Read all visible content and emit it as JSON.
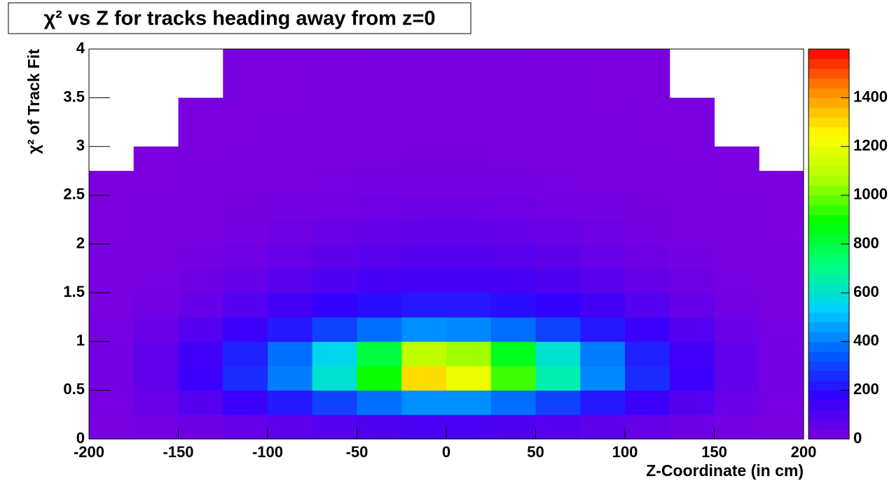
{
  "chart_data": {
    "type": "heatmap",
    "title": "χ² vs Z for tracks heading away from z=0",
    "x_label": "Z-Coordinate (in cm)",
    "y_label": "χ² of Track Fit",
    "x_bins": [
      -200,
      -175,
      -150,
      -125,
      -100,
      -75,
      -50,
      -25,
      0,
      25,
      50,
      75,
      100,
      125,
      150,
      175,
      200
    ],
    "y_bins": [
      0,
      0.25,
      0.5,
      0.75,
      1,
      1.25,
      1.5,
      1.75,
      2,
      2.25,
      2.5,
      2.75,
      3,
      3.25,
      3.5,
      3.75,
      4
    ],
    "z": [
      [
        5,
        15,
        30,
        50,
        70,
        90,
        100,
        110,
        110,
        100,
        90,
        70,
        50,
        30,
        15,
        5
      ],
      [
        10,
        40,
        90,
        150,
        220,
        300,
        380,
        430,
        430,
        380,
        300,
        220,
        150,
        90,
        40,
        10
      ],
      [
        15,
        60,
        150,
        260,
        400,
        600,
        900,
        1300,
        1200,
        950,
        650,
        420,
        260,
        150,
        60,
        15
      ],
      [
        15,
        60,
        140,
        240,
        380,
        560,
        800,
        1100,
        1050,
        850,
        600,
        400,
        240,
        140,
        60,
        15
      ],
      [
        10,
        40,
        90,
        150,
        220,
        300,
        380,
        430,
        420,
        380,
        300,
        220,
        150,
        90,
        40,
        10
      ],
      [
        5,
        20,
        50,
        90,
        130,
        170,
        200,
        220,
        220,
        200,
        170,
        130,
        90,
        50,
        20,
        5
      ],
      [
        3,
        10,
        25,
        50,
        80,
        100,
        120,
        130,
        130,
        120,
        100,
        80,
        50,
        25,
        10,
        3
      ],
      [
        2,
        6,
        12,
        25,
        45,
        65,
        80,
        85,
        85,
        80,
        65,
        45,
        25,
        12,
        6,
        2
      ],
      [
        1,
        3,
        6,
        12,
        25,
        40,
        50,
        55,
        55,
        50,
        40,
        25,
        12,
        6,
        3,
        1
      ],
      [
        1,
        2,
        4,
        8,
        12,
        20,
        25,
        28,
        28,
        25,
        20,
        12,
        8,
        4,
        2,
        1
      ],
      [
        1,
        1,
        2,
        4,
        6,
        9,
        12,
        13,
        13,
        12,
        9,
        6,
        4,
        2,
        1,
        1
      ],
      [
        0,
        1,
        1,
        2,
        3,
        5,
        6,
        7,
        7,
        6,
        5,
        3,
        2,
        1,
        1,
        0
      ],
      [
        0,
        0,
        1,
        1,
        2,
        3,
        4,
        4,
        4,
        4,
        3,
        2,
        1,
        1,
        0,
        0
      ],
      [
        0,
        0,
        1,
        1,
        1,
        2,
        3,
        3,
        3,
        3,
        2,
        1,
        1,
        1,
        0,
        0
      ],
      [
        0,
        0,
        0,
        1,
        1,
        2,
        2,
        2,
        2,
        2,
        2,
        1,
        1,
        0,
        0,
        0
      ],
      [
        0,
        0,
        0,
        1,
        1,
        1,
        2,
        2,
        2,
        2,
        1,
        1,
        1,
        0,
        0,
        0
      ]
    ],
    "xlim": [
      -200,
      200
    ],
    "xticks": [
      -200,
      -150,
      -100,
      -50,
      0,
      50,
      100,
      150,
      200
    ],
    "ylim": [
      0,
      4
    ],
    "yticks": [
      0,
      0.5,
      1,
      1.5,
      2,
      2.5,
      3,
      3.5,
      4
    ],
    "zlim": [
      0,
      1600
    ],
    "zticks": [
      0,
      200,
      400,
      600,
      800,
      1000,
      1200,
      1400
    ],
    "colorscale": [
      "#7a00e0",
      "#3000ff",
      "#0060ff",
      "#00d0ff",
      "#00ff80",
      "#00ff00",
      "#b0ff00",
      "#ffff00",
      "#ff9000",
      "#ff0000"
    ]
  }
}
